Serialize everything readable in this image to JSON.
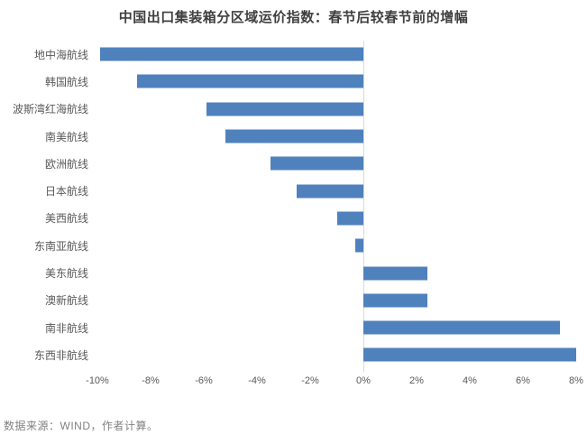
{
  "title": "中国出口集装箱分区域运价指数：春节后较春节前的增幅",
  "source_note": "数据来源：WIND，作者计算。",
  "colors": {
    "bar": "#4f81bd",
    "axis_line": "#d9d9d9",
    "title_text": "#3f3f3f",
    "label_text": "#595959",
    "tick_text": "#595959",
    "source_text": "#808080"
  },
  "chart_data": {
    "type": "bar",
    "orientation": "horizontal",
    "title": "中国出口集装箱分区域运价指数：春节后较春节前的增幅",
    "categories": [
      "地中海航线",
      "韩国航线",
      "波斯湾红海航线",
      "南美航线",
      "欧洲航线",
      "日本航线",
      "美西航线",
      "东南亚航线",
      "美东航线",
      "澳新航线",
      "南非航线",
      "东西非航线"
    ],
    "values": [
      -9.9,
      -8.5,
      -5.9,
      -5.2,
      -3.5,
      -2.5,
      -1.0,
      -0.3,
      2.4,
      2.4,
      7.4,
      8.0
    ],
    "unit": "%",
    "xlim": [
      -10,
      8
    ],
    "x_tick_step": 2,
    "x_tick_labels": [
      "-10%",
      "-8%",
      "-6%",
      "-4%",
      "-2%",
      "0%",
      "2%",
      "4%",
      "6%",
      "8%"
    ],
    "grid": false,
    "legend": "none",
    "annotation": "数据来源：WIND，作者计算。"
  }
}
